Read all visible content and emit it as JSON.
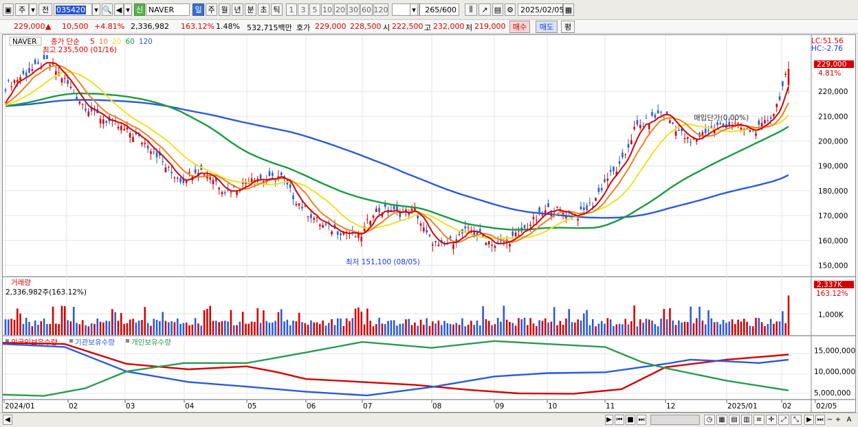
{
  "toolbar": {
    "market": "주",
    "type": "전",
    "code": "035420",
    "badge": "신",
    "name": "NAVER",
    "periods": [
      "일",
      "주",
      "월",
      "년",
      "분",
      "초",
      "틱"
    ],
    "active_period": "일",
    "numbers": [
      "1",
      "3",
      "5",
      "10",
      "20",
      "30",
      "60",
      "120"
    ],
    "count": "265",
    "count_total": "/600",
    "date": "2025/02/05"
  },
  "quote": {
    "price": "229,000",
    "arrow": "▲",
    "change": "10,500",
    "change_pct": "+4.81%",
    "volume": "2,336,982",
    "volume_ratio": "163.12%",
    "turnover": "1.48%",
    "amount": "532,715백만",
    "ask_label": "호가",
    "ask": "229,000",
    "bid": "228,500",
    "open_label": "시",
    "open": "222,500",
    "high_label": "고",
    "high": "232,000",
    "low_label": "저",
    "low": "219,000",
    "buy": "매수",
    "sell": "매도",
    "eval": "평"
  },
  "price_panel": {
    "symbol": "NAVER",
    "legend_prefix": "종가 단순",
    "ma_periods": [
      "5",
      "10",
      "20",
      "60",
      "120"
    ],
    "ma_colors": [
      "#d40000",
      "#f08020",
      "#f0e020",
      "#1a9a40",
      "#2a5ad8"
    ],
    "max_label": "최고 235,500 (01/16)",
    "min_label": "최저 151,100 (08/05)",
    "lc_label": "LC:51.56",
    "hc_label": "HC:-2.76",
    "current_tag": "229,000",
    "current_pct": "4.81%",
    "annotation": "매입단가(0.00%)",
    "y_ticks": [
      "220,000",
      "210,000",
      "200,000",
      "190,000",
      "180,000",
      "170,000",
      "160,000",
      "150,000"
    ]
  },
  "volume_panel": {
    "title": "거래량",
    "value": "2,336,982주(163.12%)",
    "tick": "1,000K",
    "tag": "2,337K",
    "tag_pct": "163.12%"
  },
  "holder_panel": {
    "series": [
      "외국인보유수량",
      "기관보유수량",
      "개인보유수량"
    ],
    "colors": [
      "#d40000",
      "#2a5ad8",
      "#2a9a50"
    ],
    "y_ticks": [
      "15,000,000",
      "10,000,000",
      "5,000,000"
    ]
  },
  "x_axis": {
    "labels": [
      "2024/01",
      "02",
      "03",
      "04",
      "05",
      "06",
      "07",
      "08",
      "09",
      "10",
      "11",
      "12",
      "2025/01",
      "02",
      "02/05"
    ]
  }
}
